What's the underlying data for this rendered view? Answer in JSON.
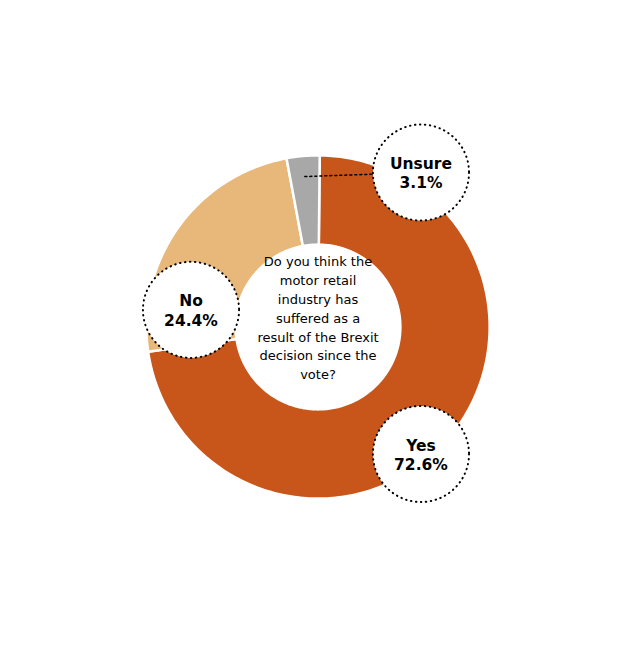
{
  "chart_data": {
    "type": "donut",
    "categories": [
      "Yes",
      "No",
      "Unsure"
    ],
    "values": [
      72.6,
      24.4,
      3.1
    ],
    "value_labels": [
      "72.6%",
      "24.4%",
      "3.1%"
    ],
    "colors": [
      "#C8561A",
      "#E8B87A",
      "#A8A8A8"
    ],
    "data_labels": true,
    "annotations": [
      "Do you think the\nmotor retail\nindustry has\nsuffered as a\nresult of the Brexit\ndecision since the\nvote?"
    ]
  }
}
